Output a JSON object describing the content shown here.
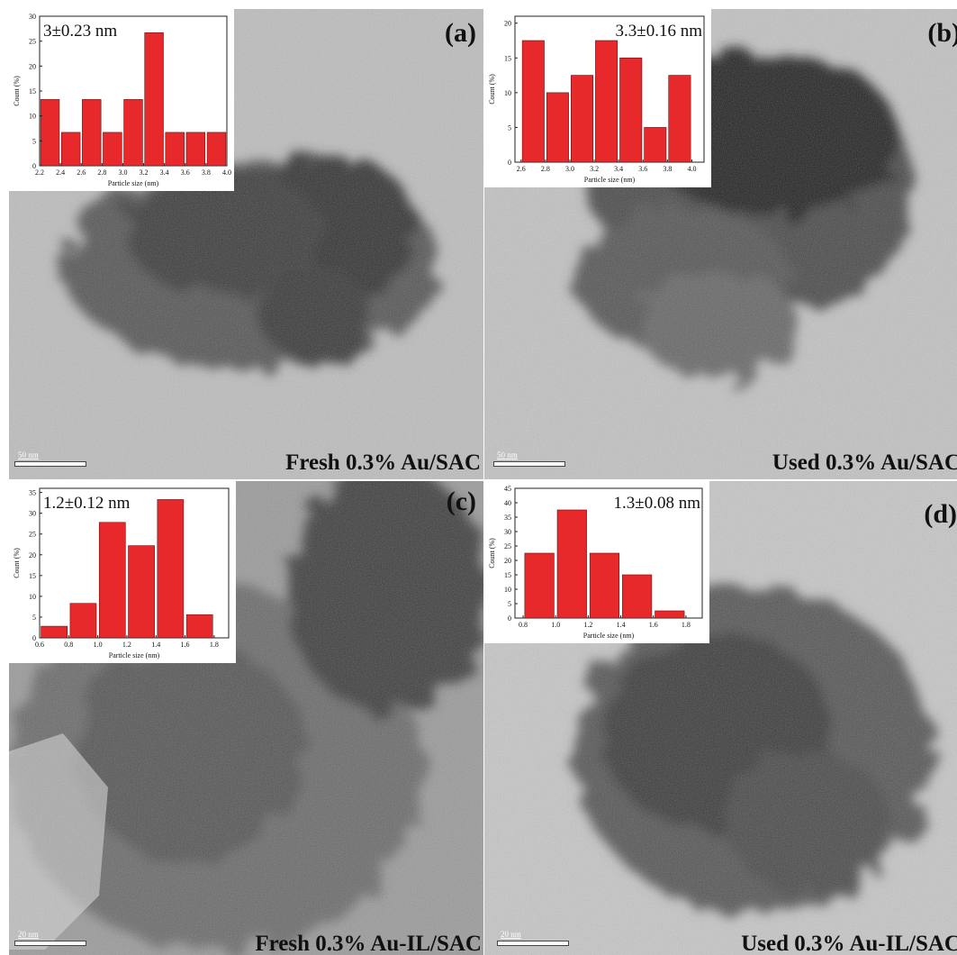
{
  "panels": [
    {
      "label": "(a)",
      "caption": "Fresh 0.3% Au/SAC",
      "scale_text": "50 nm"
    },
    {
      "label": "(b)",
      "caption": "Used 0.3% Au/SAC",
      "scale_text": "50 nm"
    },
    {
      "label": "(c)",
      "caption": "Fresh 0.3% Au-IL/SAC",
      "scale_text": "20 nm"
    },
    {
      "label": "(d)",
      "caption": "Used 0.3% Au-IL/SAC",
      "scale_text": "20 nm"
    }
  ],
  "colors": {
    "bar": "#e8292c",
    "bar_edge": "#6a1010"
  },
  "chart_data": [
    {
      "type": "bar",
      "annotation": "3±0.23 nm",
      "xlabel": "Particle size (nm)",
      "ylabel": "Count (%)",
      "x": [
        2.3,
        2.5,
        2.7,
        2.9,
        3.1,
        3.3,
        3.5,
        3.7,
        3.9
      ],
      "values": [
        13.3,
        6.7,
        13.3,
        6.7,
        13.3,
        26.7,
        6.7,
        6.7,
        6.7
      ],
      "xlim": [
        2.2,
        4.0
      ],
      "xticks": [
        2.2,
        2.4,
        2.6,
        2.8,
        3.0,
        3.2,
        3.4,
        3.6,
        3.8,
        4.0
      ],
      "ylim": [
        0,
        30
      ],
      "yticks": [
        0,
        5,
        10,
        15,
        20,
        25,
        30
      ]
    },
    {
      "type": "bar",
      "annotation": "3.3±0.16 nm",
      "xlabel": "Particle size (nm)",
      "ylabel": "Count (%)",
      "x": [
        2.7,
        2.9,
        3.1,
        3.3,
        3.5,
        3.7,
        3.9
      ],
      "values": [
        17.5,
        10,
        12.5,
        17.5,
        15,
        5,
        12.5
      ],
      "xlim": [
        2.55,
        4.1
      ],
      "xticks": [
        2.6,
        2.8,
        3.0,
        3.2,
        3.4,
        3.6,
        3.8,
        4.0
      ],
      "ylim": [
        0,
        21
      ],
      "yticks": [
        0,
        5,
        10,
        15,
        20
      ]
    },
    {
      "type": "bar",
      "annotation": "1.2±0.12 nm",
      "xlabel": "Particle size (nm)",
      "ylabel": "Count (%)",
      "x": [
        0.7,
        0.9,
        1.1,
        1.3,
        1.5,
        1.7
      ],
      "values": [
        2.8,
        8.3,
        27.8,
        22.2,
        33.3,
        5.6
      ],
      "xlim": [
        0.6,
        1.9
      ],
      "xticks": [
        0.6,
        0.8,
        1.0,
        1.2,
        1.4,
        1.6,
        1.8
      ],
      "ylim": [
        0,
        36
      ],
      "yticks": [
        0,
        5,
        10,
        15,
        20,
        25,
        30,
        35
      ]
    },
    {
      "type": "bar",
      "annotation": "1.3±0.08 nm",
      "xlabel": "Particle size (nm)",
      "ylabel": "Count (%)",
      "x": [
        0.9,
        1.1,
        1.3,
        1.5,
        1.7
      ],
      "values": [
        22.5,
        37.5,
        22.5,
        15,
        2.5
      ],
      "xlim": [
        0.75,
        1.9
      ],
      "xticks": [
        0.8,
        1.0,
        1.2,
        1.4,
        1.6,
        1.8
      ],
      "ylim": [
        0,
        45
      ],
      "yticks": [
        0,
        5,
        10,
        15,
        20,
        25,
        30,
        35,
        40,
        45
      ]
    }
  ]
}
